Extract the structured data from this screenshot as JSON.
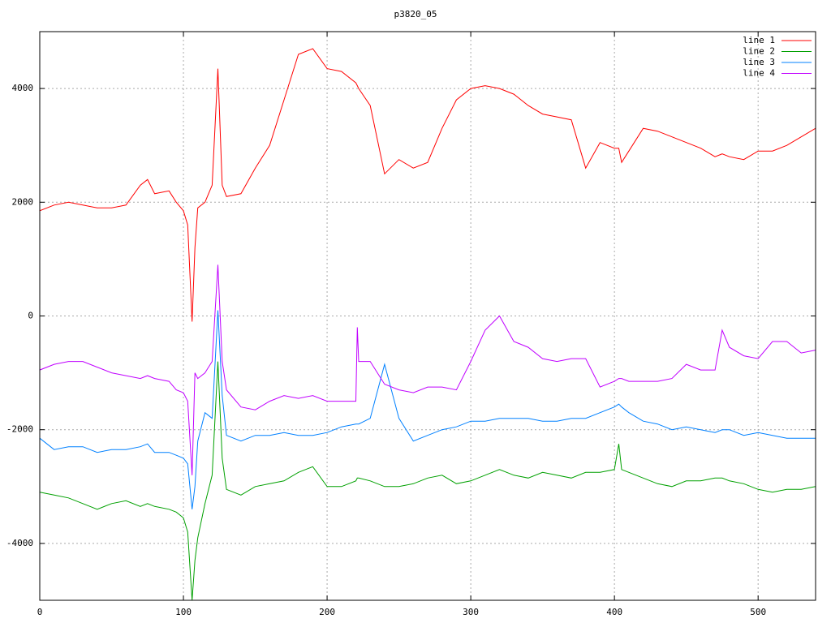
{
  "chart_data": {
    "type": "line",
    "title": "p3820_05",
    "x": [
      0,
      10,
      20,
      30,
      40,
      50,
      60,
      70,
      75,
      80,
      90,
      95,
      100,
      103,
      106,
      108,
      110,
      115,
      120,
      124,
      127,
      130,
      140,
      150,
      160,
      170,
      180,
      190,
      200,
      210,
      220,
      221,
      222,
      230,
      240,
      250,
      260,
      270,
      280,
      290,
      300,
      310,
      320,
      330,
      340,
      350,
      360,
      370,
      380,
      390,
      400,
      403,
      405,
      410,
      420,
      430,
      440,
      450,
      460,
      470,
      475,
      480,
      490,
      500,
      510,
      520,
      530,
      540
    ],
    "series": [
      {
        "name": "line 1",
        "color": "#ff0000",
        "values": [
          1850,
          1950,
          2000,
          1950,
          1900,
          1900,
          1950,
          2300,
          2400,
          2150,
          2200,
          2000,
          1850,
          1600,
          -100,
          1200,
          1900,
          2000,
          2300,
          4350,
          2300,
          2100,
          2150,
          2600,
          3000,
          3800,
          4600,
          4700,
          4350,
          4300,
          4100,
          4050,
          4000,
          3700,
          2500,
          2750,
          2600,
          2700,
          3300,
          3800,
          4000,
          4050,
          4000,
          3900,
          3700,
          3550,
          3500,
          3450,
          2600,
          3050,
          2950,
          2950,
          2700,
          2900,
          3300,
          3250,
          3150,
          3050,
          2950,
          2800,
          2850,
          2800,
          2750,
          2900,
          2900,
          3000,
          3150,
          3300
        ]
      },
      {
        "name": "line 2",
        "color": "#00a000",
        "values": [
          -3100,
          -3150,
          -3200,
          -3300,
          -3400,
          -3300,
          -3250,
          -3350,
          -3300,
          -3350,
          -3400,
          -3450,
          -3550,
          -3800,
          -5000,
          -4300,
          -3900,
          -3300,
          -2800,
          -800,
          -2500,
          -3050,
          -3150,
          -3000,
          -2950,
          -2900,
          -2750,
          -2650,
          -3000,
          -3000,
          -2900,
          -2850,
          -2850,
          -2900,
          -3000,
          -3000,
          -2950,
          -2850,
          -2800,
          -2950,
          -2900,
          -2800,
          -2700,
          -2800,
          -2850,
          -2750,
          -2800,
          -2850,
          -2750,
          -2750,
          -2700,
          -2250,
          -2700,
          -2750,
          -2850,
          -2950,
          -3000,
          -2900,
          -2900,
          -2850,
          -2850,
          -2900,
          -2950,
          -3050,
          -3100,
          -3050,
          -3050,
          -3000
        ]
      },
      {
        "name": "line 3",
        "color": "#0080ff",
        "values": [
          -2150,
          -2350,
          -2300,
          -2300,
          -2400,
          -2350,
          -2350,
          -2300,
          -2250,
          -2400,
          -2400,
          -2450,
          -2500,
          -2600,
          -3400,
          -3000,
          -2200,
          -1700,
          -1800,
          100,
          -1400,
          -2100,
          -2200,
          -2100,
          -2100,
          -2050,
          -2100,
          -2100,
          -2050,
          -1950,
          -1900,
          -1900,
          -1900,
          -1800,
          -850,
          -1800,
          -2200,
          -2100,
          -2000,
          -1950,
          -1850,
          -1850,
          -1800,
          -1800,
          -1800,
          -1850,
          -1850,
          -1800,
          -1800,
          -1700,
          -1600,
          -1550,
          -1600,
          -1700,
          -1850,
          -1900,
          -2000,
          -1950,
          -2000,
          -2050,
          -2000,
          -2000,
          -2100,
          -2050,
          -2100,
          -2150,
          -2150,
          -2150
        ]
      },
      {
        "name": "line 4",
        "color": "#c000ff",
        "values": [
          -950,
          -850,
          -800,
          -800,
          -900,
          -1000,
          -1050,
          -1100,
          -1050,
          -1100,
          -1150,
          -1300,
          -1350,
          -1500,
          -2800,
          -1000,
          -1100,
          -1000,
          -800,
          900,
          -800,
          -1300,
          -1600,
          -1650,
          -1500,
          -1400,
          -1450,
          -1400,
          -1500,
          -1500,
          -1500,
          -200,
          -800,
          -800,
          -1200,
          -1300,
          -1350,
          -1250,
          -1250,
          -1300,
          -800,
          -250,
          0,
          -450,
          -550,
          -750,
          -800,
          -750,
          -750,
          -1250,
          -1150,
          -1100,
          -1100,
          -1150,
          -1150,
          -1150,
          -1100,
          -850,
          -950,
          -950,
          -250,
          -550,
          -700,
          -750,
          -450,
          -450,
          -650,
          -600
        ]
      }
    ],
    "xlim": [
      0,
      540
    ],
    "ylim": [
      -5000,
      5000
    ],
    "xticks": [
      0,
      100,
      200,
      300,
      400,
      500
    ],
    "yticks": [
      -4000,
      -2000,
      0,
      2000,
      4000
    ],
    "grid": true,
    "legend": "top-right"
  }
}
